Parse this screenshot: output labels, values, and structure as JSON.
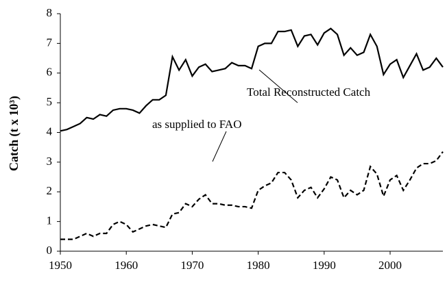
{
  "chart_data": {
    "type": "line",
    "y_label": "Catch (t x 10³)",
    "annotations": [
      "Total Reconstructed Catch",
      "as supplied to FAO"
    ],
    "x": [
      1950,
      1951,
      1952,
      1953,
      1954,
      1955,
      1956,
      1957,
      1958,
      1959,
      1960,
      1961,
      1962,
      1963,
      1964,
      1965,
      1966,
      1967,
      1968,
      1969,
      1970,
      1971,
      1972,
      1973,
      1974,
      1975,
      1976,
      1977,
      1978,
      1979,
      1980,
      1981,
      1982,
      1983,
      1984,
      1985,
      1986,
      1987,
      1988,
      1989,
      1990,
      1991,
      1992,
      1993,
      1994,
      1995,
      1996,
      1997,
      1998,
      1999,
      2000,
      2001,
      2002,
      2003,
      2004,
      2005,
      2006,
      2007,
      2008
    ],
    "series": [
      {
        "name": "Total Reconstructed Catch",
        "color": "#000000",
        "dash": "solid",
        "values": [
          4.05,
          4.1,
          4.2,
          4.3,
          4.5,
          4.45,
          4.6,
          4.55,
          4.75,
          4.8,
          4.8,
          4.75,
          4.65,
          4.9,
          5.1,
          5.1,
          5.25,
          6.55,
          6.1,
          6.45,
          5.9,
          6.2,
          6.3,
          6.05,
          6.1,
          6.15,
          6.35,
          6.25,
          6.25,
          6.15,
          6.9,
          7.0,
          7.0,
          7.4,
          7.4,
          7.45,
          6.9,
          7.25,
          7.3,
          6.95,
          7.35,
          7.5,
          7.3,
          6.6,
          6.85,
          6.6,
          6.7,
          7.3,
          6.9,
          5.95,
          6.3,
          6.45,
          5.85,
          6.25,
          6.65,
          6.1,
          6.2,
          6.5,
          6.2
        ]
      },
      {
        "name": "as supplied to FAO",
        "color": "#000000",
        "dash": "dashed",
        "values": [
          0.4,
          0.4,
          0.4,
          0.5,
          0.6,
          0.5,
          0.6,
          0.6,
          0.9,
          1.0,
          0.9,
          0.65,
          0.75,
          0.85,
          0.9,
          0.85,
          0.8,
          1.25,
          1.3,
          1.6,
          1.5,
          1.75,
          1.9,
          1.6,
          1.6,
          1.55,
          1.55,
          1.5,
          1.5,
          1.45,
          2.05,
          2.2,
          2.3,
          2.65,
          2.65,
          2.4,
          1.8,
          2.05,
          2.15,
          1.8,
          2.1,
          2.5,
          2.4,
          1.8,
          2.05,
          1.9,
          2.05,
          2.85,
          2.6,
          1.85,
          2.4,
          2.55,
          2.05,
          2.4,
          2.8,
          2.95,
          2.95,
          3.05,
          3.35
        ]
      }
    ],
    "xlim": [
      1950,
      2008
    ],
    "xticks": [
      1950,
      1960,
      1970,
      1980,
      1990,
      2000
    ],
    "ylim": [
      0,
      8
    ],
    "yticks": [
      0,
      1,
      2,
      3,
      4,
      5,
      6,
      7,
      8
    ],
    "grid": false
  }
}
